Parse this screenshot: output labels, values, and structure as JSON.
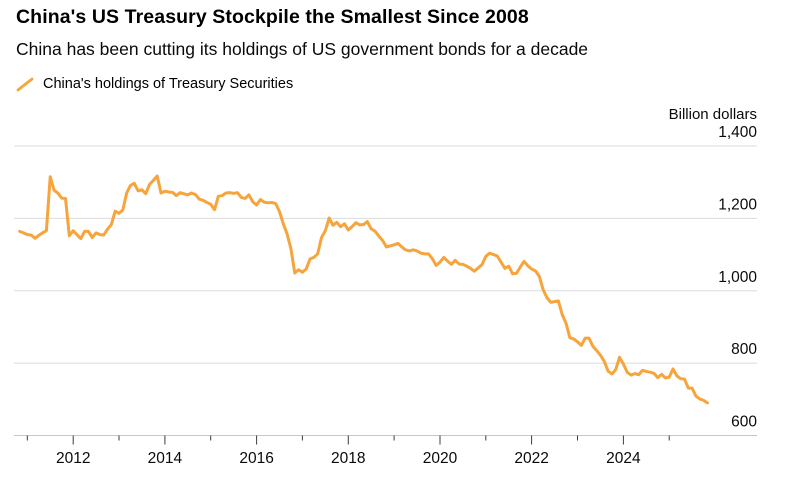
{
  "header": {
    "title": "China's US Treasury Stockpile the Smallest Since 2008",
    "subtitle": "China has been cutting its holdings of US government bonds for a decade"
  },
  "legend": {
    "series_label": "China's holdings of Treasury Securities",
    "swatch_color": "#F6A43B"
  },
  "chart_data": {
    "type": "line",
    "title": "China's US Treasury Stockpile the Smallest Since 2008",
    "subtitle": "China has been cutting its holdings of US government bonds for a decade",
    "unit_label": "Billion dollars",
    "ylabel": "Billion dollars",
    "xlabel": "",
    "ylim": [
      600,
      1400
    ],
    "y_ticks": [
      600,
      800,
      1000,
      1200,
      1400
    ],
    "x_major_tick_years": [
      2012,
      2014,
      2016,
      2018,
      2020,
      2022,
      2024
    ],
    "x_minor_tick_years": [
      2011,
      2013,
      2015,
      2017,
      2019,
      2021,
      2023,
      2025
    ],
    "grid": "horizontal",
    "legend_position": "top-left",
    "line_color": "#F6A43B",
    "grid_color": "#DBDBDB",
    "axis_color": "#C6C6C6",
    "tick_color": "#3c3c3c",
    "series": [
      {
        "name": "China's holdings of Treasury Securities",
        "unit": "billion USD",
        "points": [
          [
            "2010-11",
            1164
          ],
          [
            "2010-12",
            1160
          ],
          [
            "2011-01",
            1155
          ],
          [
            "2011-02",
            1154
          ],
          [
            "2011-03",
            1145
          ],
          [
            "2011-04",
            1153
          ],
          [
            "2011-05",
            1160
          ],
          [
            "2011-06",
            1166
          ],
          [
            "2011-07",
            1315
          ],
          [
            "2011-08",
            1278
          ],
          [
            "2011-09",
            1270
          ],
          [
            "2011-10",
            1256
          ],
          [
            "2011-11",
            1255
          ],
          [
            "2011-12",
            1152
          ],
          [
            "2012-01",
            1166
          ],
          [
            "2012-02",
            1155
          ],
          [
            "2012-03",
            1144
          ],
          [
            "2012-04",
            1164
          ],
          [
            "2012-05",
            1164
          ],
          [
            "2012-06",
            1147
          ],
          [
            "2012-07",
            1160
          ],
          [
            "2012-08",
            1155
          ],
          [
            "2012-09",
            1154
          ],
          [
            "2012-10",
            1170
          ],
          [
            "2012-11",
            1183
          ],
          [
            "2012-12",
            1220
          ],
          [
            "2013-01",
            1214
          ],
          [
            "2013-02",
            1223
          ],
          [
            "2013-03",
            1270
          ],
          [
            "2013-04",
            1291
          ],
          [
            "2013-05",
            1297
          ],
          [
            "2013-06",
            1276
          ],
          [
            "2013-07",
            1279
          ],
          [
            "2013-08",
            1268
          ],
          [
            "2013-09",
            1294
          ],
          [
            "2013-10",
            1305
          ],
          [
            "2013-11",
            1317
          ],
          [
            "2013-12",
            1270
          ],
          [
            "2014-01",
            1275
          ],
          [
            "2014-02",
            1273
          ],
          [
            "2014-03",
            1272
          ],
          [
            "2014-04",
            1263
          ],
          [
            "2014-05",
            1271
          ],
          [
            "2014-06",
            1268
          ],
          [
            "2014-07",
            1265
          ],
          [
            "2014-08",
            1270
          ],
          [
            "2014-09",
            1266
          ],
          [
            "2014-10",
            1253
          ],
          [
            "2014-11",
            1250
          ],
          [
            "2014-12",
            1244
          ],
          [
            "2015-01",
            1239
          ],
          [
            "2015-02",
            1224
          ],
          [
            "2015-03",
            1261
          ],
          [
            "2015-04",
            1263
          ],
          [
            "2015-05",
            1270
          ],
          [
            "2015-06",
            1271
          ],
          [
            "2015-07",
            1269
          ],
          [
            "2015-08",
            1271
          ],
          [
            "2015-09",
            1258
          ],
          [
            "2015-10",
            1255
          ],
          [
            "2015-11",
            1265
          ],
          [
            "2015-12",
            1246
          ],
          [
            "2016-01",
            1237
          ],
          [
            "2016-02",
            1252
          ],
          [
            "2016-03",
            1245
          ],
          [
            "2016-04",
            1243
          ],
          [
            "2016-05",
            1244
          ],
          [
            "2016-06",
            1241
          ],
          [
            "2016-07",
            1219
          ],
          [
            "2016-08",
            1185
          ],
          [
            "2016-09",
            1157
          ],
          [
            "2016-10",
            1116
          ],
          [
            "2016-11",
            1049
          ],
          [
            "2016-12",
            1058
          ],
          [
            "2017-01",
            1051
          ],
          [
            "2017-02",
            1060
          ],
          [
            "2017-03",
            1088
          ],
          [
            "2017-04",
            1092
          ],
          [
            "2017-05",
            1102
          ],
          [
            "2017-06",
            1147
          ],
          [
            "2017-07",
            1166
          ],
          [
            "2017-08",
            1201
          ],
          [
            "2017-09",
            1181
          ],
          [
            "2017-10",
            1189
          ],
          [
            "2017-11",
            1177
          ],
          [
            "2017-12",
            1185
          ],
          [
            "2018-01",
            1168
          ],
          [
            "2018-02",
            1177
          ],
          [
            "2018-03",
            1188
          ],
          [
            "2018-04",
            1182
          ],
          [
            "2018-05",
            1183
          ],
          [
            "2018-06",
            1191
          ],
          [
            "2018-07",
            1171
          ],
          [
            "2018-08",
            1165
          ],
          [
            "2018-09",
            1151
          ],
          [
            "2018-10",
            1139
          ],
          [
            "2018-11",
            1121
          ],
          [
            "2018-12",
            1124
          ],
          [
            "2019-01",
            1127
          ],
          [
            "2019-02",
            1131
          ],
          [
            "2019-03",
            1121
          ],
          [
            "2019-04",
            1113
          ],
          [
            "2019-05",
            1110
          ],
          [
            "2019-06",
            1113
          ],
          [
            "2019-07",
            1110
          ],
          [
            "2019-08",
            1104
          ],
          [
            "2019-09",
            1102
          ],
          [
            "2019-10",
            1102
          ],
          [
            "2019-11",
            1089
          ],
          [
            "2019-12",
            1070
          ],
          [
            "2020-01",
            1079
          ],
          [
            "2020-02",
            1092
          ],
          [
            "2020-03",
            1082
          ],
          [
            "2020-04",
            1073
          ],
          [
            "2020-05",
            1084
          ],
          [
            "2020-06",
            1074
          ],
          [
            "2020-07",
            1073
          ],
          [
            "2020-08",
            1068
          ],
          [
            "2020-09",
            1062
          ],
          [
            "2020-10",
            1054
          ],
          [
            "2020-11",
            1063
          ],
          [
            "2020-12",
            1072
          ],
          [
            "2021-01",
            1095
          ],
          [
            "2021-02",
            1104
          ],
          [
            "2021-03",
            1100
          ],
          [
            "2021-04",
            1096
          ],
          [
            "2021-05",
            1079
          ],
          [
            "2021-06",
            1062
          ],
          [
            "2021-07",
            1068
          ],
          [
            "2021-08",
            1047
          ],
          [
            "2021-09",
            1048
          ],
          [
            "2021-10",
            1065
          ],
          [
            "2021-11",
            1081
          ],
          [
            "2021-12",
            1069
          ],
          [
            "2022-01",
            1060
          ],
          [
            "2022-02",
            1055
          ],
          [
            "2022-03",
            1040
          ],
          [
            "2022-04",
            1003
          ],
          [
            "2022-05",
            981
          ],
          [
            "2022-06",
            968
          ],
          [
            "2022-07",
            970
          ],
          [
            "2022-08",
            972
          ],
          [
            "2022-09",
            934
          ],
          [
            "2022-10",
            910
          ],
          [
            "2022-11",
            870
          ],
          [
            "2022-12",
            867
          ],
          [
            "2023-01",
            859
          ],
          [
            "2023-02",
            849
          ],
          [
            "2023-03",
            869
          ],
          [
            "2023-04",
            869
          ],
          [
            "2023-05",
            847
          ],
          [
            "2023-06",
            835
          ],
          [
            "2023-07",
            822
          ],
          [
            "2023-08",
            805
          ],
          [
            "2023-09",
            778
          ],
          [
            "2023-10",
            770
          ],
          [
            "2023-11",
            782
          ],
          [
            "2023-12",
            816
          ],
          [
            "2024-01",
            798
          ],
          [
            "2024-02",
            775
          ],
          [
            "2024-03",
            767
          ],
          [
            "2024-04",
            771
          ],
          [
            "2024-05",
            768
          ],
          [
            "2024-06",
            780
          ],
          [
            "2024-07",
            777
          ],
          [
            "2024-08",
            775
          ],
          [
            "2024-09",
            772
          ],
          [
            "2024-10",
            760
          ],
          [
            "2024-11",
            769
          ],
          [
            "2024-12",
            759
          ],
          [
            "2025-01",
            761
          ],
          [
            "2025-02",
            784
          ],
          [
            "2025-03",
            765
          ],
          [
            "2025-04",
            757
          ],
          [
            "2025-05",
            756
          ],
          [
            "2025-06",
            731
          ],
          [
            "2025-07",
            731
          ],
          [
            "2025-08",
            709
          ],
          [
            "2025-09",
            701
          ],
          [
            "2025-10",
            697
          ],
          [
            "2025-11",
            690
          ]
        ]
      }
    ]
  }
}
